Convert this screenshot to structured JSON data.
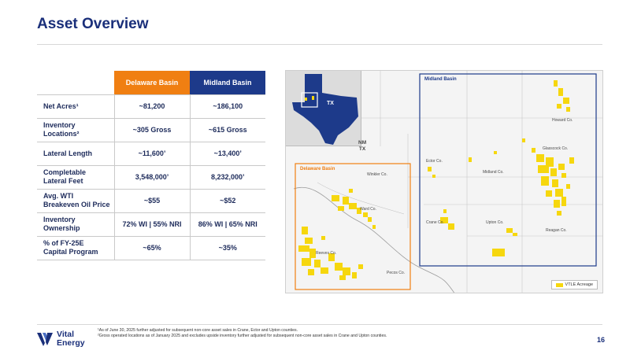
{
  "slide": {
    "title": "Asset Overview",
    "page_number": "16"
  },
  "table": {
    "headers": [
      "",
      "Delaware Basin",
      "Midland Basin"
    ],
    "rows": [
      {
        "label_line1": "Net Acres¹",
        "label_line2": "",
        "delaware": "~81,200",
        "midland": "~186,100"
      },
      {
        "label_line1": "Inventory",
        "label_line2": "Locations²",
        "delaware": "~305 Gross",
        "midland": "~615 Gross"
      },
      {
        "label_line1": "Lateral Length",
        "label_line2": "",
        "delaware": "~11,600’",
        "midland": "~13,400’"
      },
      {
        "label_line1": "Completable",
        "label_line2": "Lateral Feet",
        "delaware": "3,548,000’",
        "midland": "8,232,000’"
      },
      {
        "label_line1": "Avg. WTI",
        "label_line2": "Breakeven Oil Price",
        "delaware": "~$55",
        "midland": "~$52"
      },
      {
        "label_line1": "Inventory",
        "label_line2": "Ownership",
        "delaware": "72% WI | 55% NRI",
        "midland": "86% WI | 65% NRI"
      },
      {
        "label_line1": "% of FY-25E",
        "label_line2": "Capital Program",
        "delaware": "~65%",
        "midland": "~35%"
      }
    ]
  },
  "map": {
    "inset_label": "TX",
    "midland_label": "Midland Basin",
    "delaware_label": "Delaware Basin",
    "nm_label": "NM",
    "tx_label": "TX",
    "counties": {
      "winkler": "Winkler Co.",
      "ward": "Ward Co.",
      "reeves": "Reeves Co.",
      "pecos": "Pecos Co.",
      "ector": "Ector Co.",
      "midland": "Midland Co.",
      "howard": "Howard Co.",
      "glasscock": "Glasscock Co.",
      "crane": "Crane Co.",
      "upton": "Upton Co.",
      "reagan": "Reagan Co."
    },
    "legend_label": "VTLE Acreage",
    "colors": {
      "acreage": "#f6d70e",
      "delaware": "#f07f12",
      "midland": "#1d3a8a"
    }
  },
  "footer": {
    "logo_line1": "Vital",
    "logo_line2": "Energy",
    "note1": "¹As of June 30, 2025 further adjusted for subsequent non-core asset sales in Crane, Ector and Upton counties.",
    "note2": "²Gross operated locations as of January 2025 and excludes upside inventory further adjusted for subsequent non-core asset sales in Crane and Upton counties."
  }
}
